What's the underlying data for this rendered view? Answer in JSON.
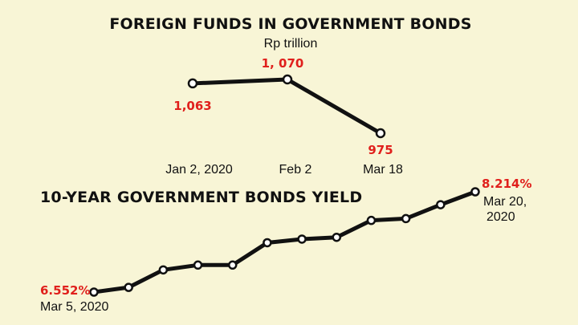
{
  "chart_data": [
    {
      "type": "line",
      "title": "FOREIGN FUNDS IN GOVERNMENT BONDS",
      "subtitle": "Rp trillion",
      "categories": [
        "Jan 2, 2020",
        "Feb 2",
        "Mar 18"
      ],
      "values": [
        1063,
        1070,
        975
      ],
      "value_labels": [
        "1,063",
        "1, 070",
        "975"
      ],
      "label_color": "#e0201c",
      "line_color": "#111111"
    },
    {
      "type": "line",
      "title": "10-YEAR GOVERNMENT BONDS YIELD",
      "values": [
        6.552,
        6.63,
        6.92,
        7.0,
        7.0,
        7.37,
        7.43,
        7.46,
        7.74,
        7.77,
        8.0,
        8.214
      ],
      "start_label": "6.552%",
      "start_date": "Mar 5, 2020",
      "end_label": "8.214%",
      "end_date_line1": "Mar 20,",
      "end_date_line2": "2020",
      "label_color": "#e0201c",
      "line_color": "#111111"
    }
  ]
}
